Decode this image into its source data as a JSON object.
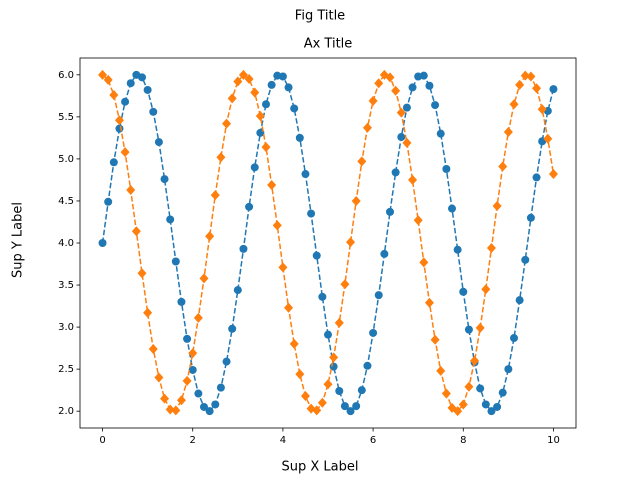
{
  "chart_data": {
    "type": "line",
    "suptitle": "Fig Title",
    "title": "Ax Title",
    "xlabel": "Sup X Label",
    "ylabel": "Sup Y Label",
    "x": [
      0,
      0.125,
      0.25,
      0.375,
      0.5,
      0.625,
      0.75,
      0.875,
      1,
      1.125,
      1.25,
      1.375,
      1.5,
      1.625,
      1.75,
      1.875,
      2,
      2.125,
      2.25,
      2.375,
      2.5,
      2.625,
      2.75,
      2.875,
      3,
      3.125,
      3.25,
      3.375,
      3.5,
      3.625,
      3.75,
      3.875,
      4,
      4.125,
      4.25,
      4.375,
      4.5,
      4.625,
      4.75,
      4.875,
      5,
      5.125,
      5.25,
      5.375,
      5.5,
      5.625,
      5.75,
      5.875,
      6,
      6.125,
      6.25,
      6.375,
      6.5,
      6.625,
      6.75,
      6.875,
      7,
      7.125,
      7.25,
      7.375,
      7.5,
      7.625,
      7.75,
      7.875,
      8,
      8.125,
      8.25,
      8.375,
      8.5,
      8.625,
      8.75,
      8.875,
      9,
      9.125,
      9.25,
      9.375,
      9.5,
      9.625,
      9.75,
      9.875,
      10
    ],
    "series": [
      {
        "color": "#1f77b4",
        "marker": "circle",
        "values": [
          4.0,
          4.49,
          4.96,
          5.36,
          5.68,
          5.9,
          6.0,
          5.97,
          5.82,
          5.56,
          5.2,
          4.76,
          4.28,
          3.78,
          3.3,
          2.86,
          2.49,
          2.21,
          2.05,
          2.0,
          2.08,
          2.28,
          2.59,
          2.98,
          3.44,
          3.93,
          4.43,
          4.9,
          5.31,
          5.65,
          5.88,
          5.99,
          5.98,
          5.85,
          5.6,
          5.25,
          4.82,
          4.35,
          3.85,
          3.36,
          2.91,
          2.53,
          2.24,
          2.06,
          2.0,
          2.06,
          2.25,
          2.54,
          2.93,
          3.38,
          3.87,
          4.37,
          4.84,
          5.26,
          5.61,
          5.85,
          5.98,
          5.99,
          5.87,
          5.64,
          5.3,
          4.88,
          4.41,
          3.92,
          3.42,
          2.97,
          2.58,
          2.27,
          2.08,
          2.0,
          2.05,
          2.22,
          2.5,
          2.87,
          3.32,
          3.8,
          4.3,
          4.78,
          5.21,
          5.57,
          5.83
        ]
      },
      {
        "color": "#ff7f0e",
        "marker": "diamond",
        "values": [
          6.0,
          5.94,
          5.76,
          5.46,
          5.08,
          4.63,
          4.14,
          3.64,
          3.17,
          2.74,
          2.4,
          2.15,
          2.02,
          2.01,
          2.13,
          2.36,
          2.69,
          3.11,
          3.58,
          4.08,
          4.57,
          5.02,
          5.42,
          5.72,
          5.92,
          6.0,
          5.95,
          5.79,
          5.51,
          5.14,
          4.69,
          4.21,
          3.71,
          3.23,
          2.8,
          2.44,
          2.18,
          2.03,
          2.01,
          2.1,
          2.32,
          2.64,
          3.05,
          3.51,
          4.01,
          4.5,
          4.97,
          5.37,
          5.69,
          5.9,
          6.0,
          5.97,
          5.81,
          5.55,
          5.19,
          4.75,
          4.27,
          3.77,
          3.29,
          2.85,
          2.48,
          2.21,
          2.04,
          2.0,
          2.08,
          2.29,
          2.6,
          2.99,
          3.45,
          3.94,
          4.44,
          4.91,
          5.32,
          5.65,
          5.88,
          5.99,
          5.98,
          5.84,
          5.59,
          5.24,
          4.82
        ]
      }
    ],
    "xlim": [
      -0.5,
      10.5
    ],
    "ylim": [
      1.8,
      6.2
    ],
    "xticks": [
      0,
      2,
      4,
      6,
      8,
      10
    ],
    "yticks": [
      {
        "value": 2,
        "label": "2.0"
      },
      {
        "value": 2.5,
        "label": "2.5"
      },
      {
        "value": 3,
        "label": "3.0"
      },
      {
        "value": 3.5,
        "label": "3.5"
      },
      {
        "value": 4,
        "label": "4.0"
      },
      {
        "value": 4.5,
        "label": "4.5"
      },
      {
        "value": 5,
        "label": "5.0"
      },
      {
        "value": 5.5,
        "label": "5.5"
      },
      {
        "value": 6,
        "label": "6.0"
      }
    ]
  }
}
